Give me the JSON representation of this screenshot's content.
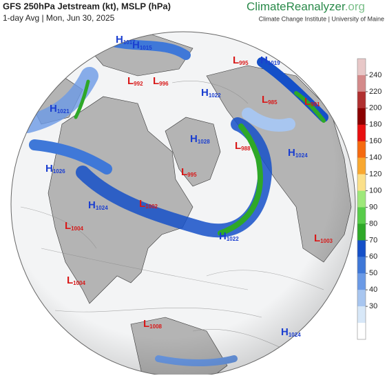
{
  "header": {
    "title": "GFS 250hPa Jetstream (kt), MSLP (hPa)",
    "subtitle": "1-day Avg | Mon, Jun 30, 2025",
    "brand": "ClimateReanalyzer",
    "brand_suffix": ".org",
    "institute": "Climate Change Institute | University of Maine"
  },
  "colorbar": {
    "ticks": [
      240,
      220,
      200,
      180,
      160,
      140,
      120,
      100,
      90,
      80,
      70,
      60,
      50,
      40,
      30
    ],
    "colors": [
      "#e8c8c8",
      "#d48a8a",
      "#b03030",
      "#8b0000",
      "#e81010",
      "#f56a10",
      "#f9a830",
      "#fbe08a",
      "#9ee87a",
      "#58cc4a",
      "#2ea828",
      "#1550c8",
      "#3f78d8",
      "#6b9ae6",
      "#a8c6f0",
      "#d8e8f8",
      "#ffffff"
    ]
  },
  "pressure_centers": [
    {
      "letter": "H",
      "value": 1017
    },
    {
      "letter": "H",
      "value": 1015
    },
    {
      "letter": "L",
      "value": 995
    },
    {
      "letter": "H",
      "value": 1019
    },
    {
      "letter": "L",
      "value": 992
    },
    {
      "letter": "L",
      "value": 996
    },
    {
      "letter": "H",
      "value": 1022
    },
    {
      "letter": "L",
      "value": 985
    },
    {
      "letter": "L",
      "value": 991
    },
    {
      "letter": "H",
      "value": 1021
    },
    {
      "letter": "H",
      "value": 1028
    },
    {
      "letter": "L",
      "value": 988
    },
    {
      "letter": "H",
      "value": 1024
    },
    {
      "letter": "H",
      "value": 1026
    },
    {
      "letter": "L",
      "value": 995
    },
    {
      "letter": "H",
      "value": 1024
    },
    {
      "letter": "L",
      "value": 1002
    },
    {
      "letter": "L",
      "value": 1004
    },
    {
      "letter": "H",
      "value": 1022
    },
    {
      "letter": "L",
      "value": 1003
    },
    {
      "letter": "L",
      "value": 1004
    },
    {
      "letter": "L",
      "value": 1008
    },
    {
      "letter": "H",
      "value": 1024
    }
  ]
}
